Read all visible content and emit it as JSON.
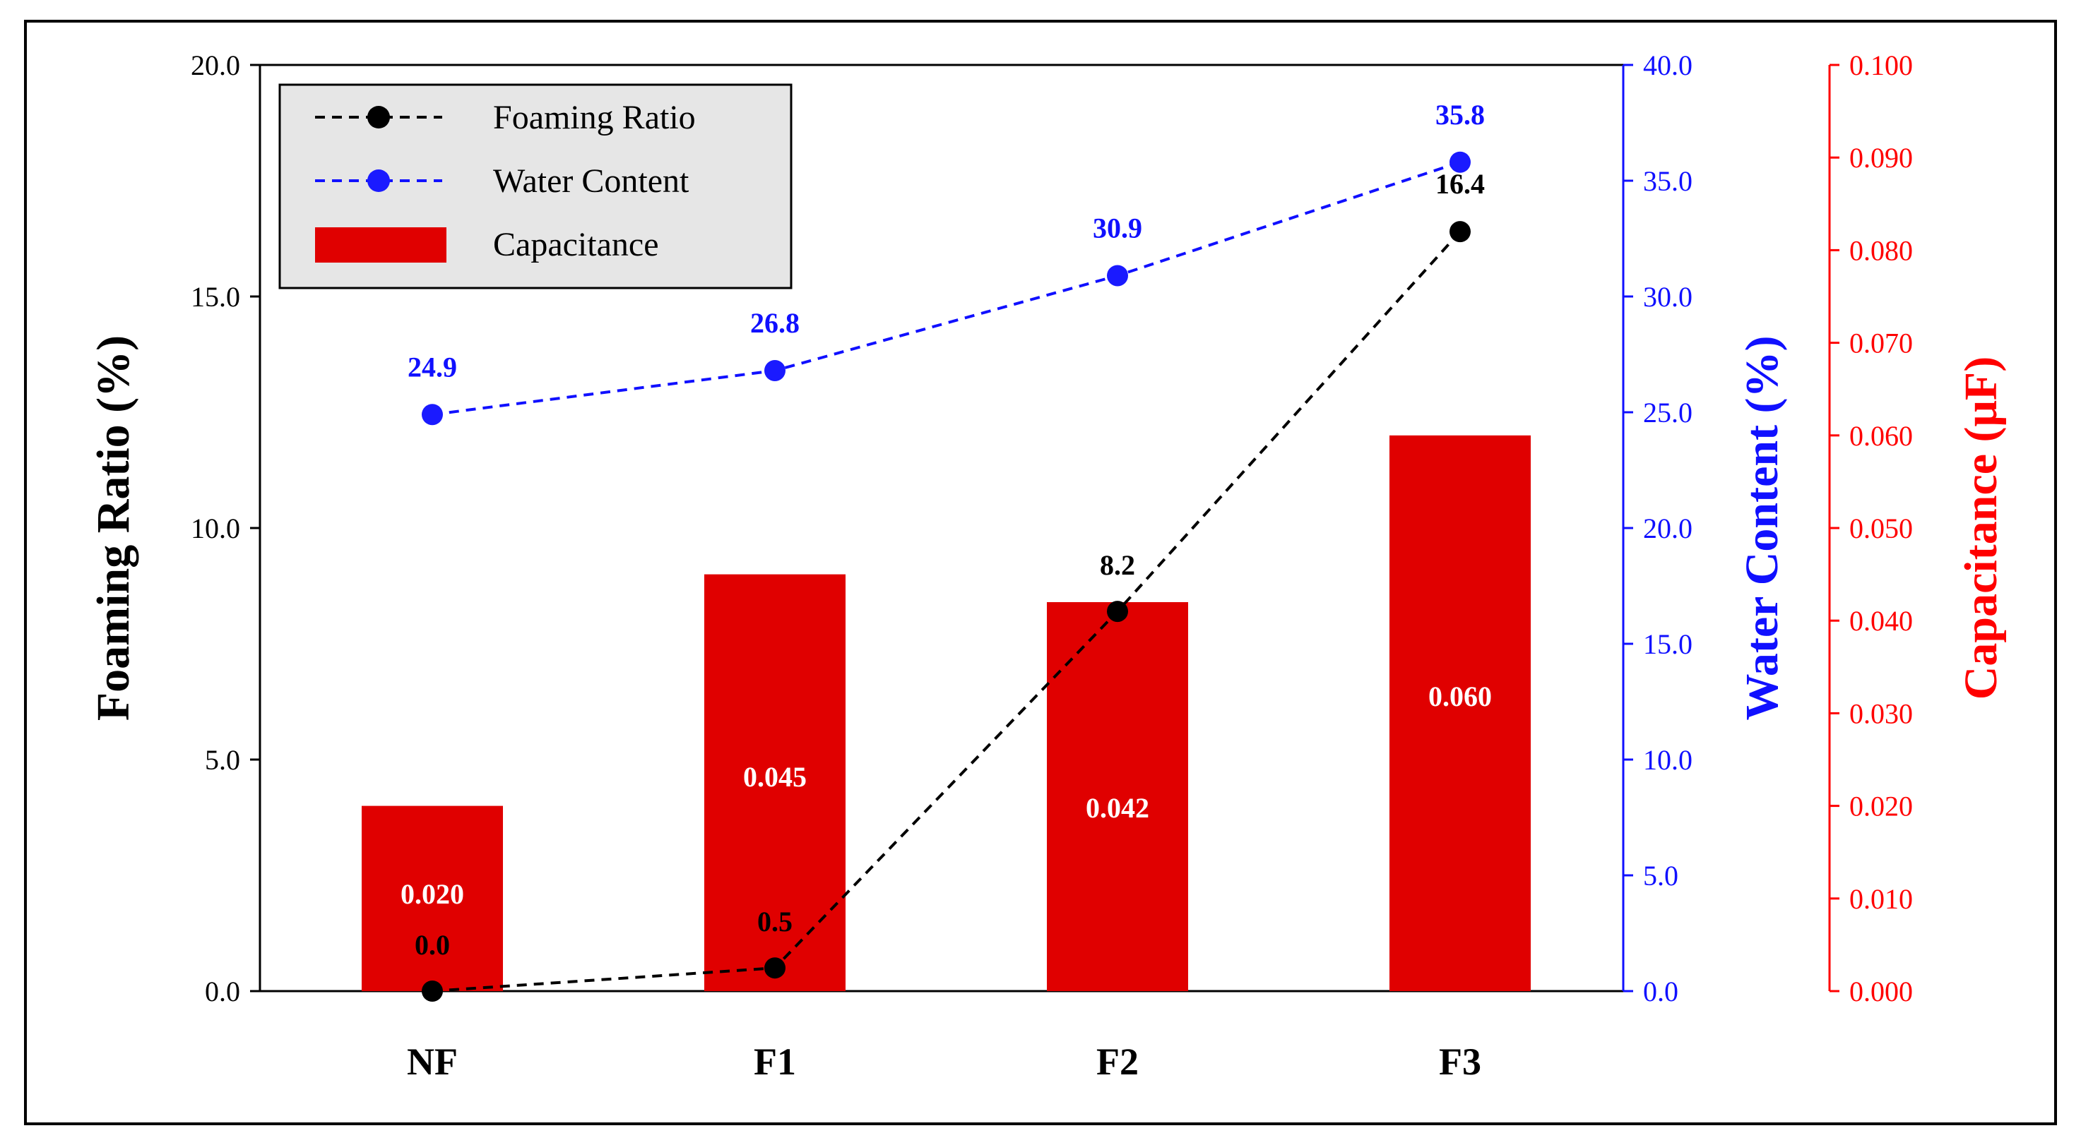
{
  "chart_data": {
    "type": "bar",
    "categories": [
      "NF",
      "F1",
      "F2",
      "F3"
    ],
    "series": [
      {
        "name": "Foaming Ratio",
        "kind": "line",
        "axis": "left",
        "values": [
          0.0,
          0.5,
          8.2,
          16.4
        ],
        "labels": [
          "0.0",
          "0.5",
          "8.2",
          "16.4"
        ],
        "color": "#000000",
        "marker_color": "#000000"
      },
      {
        "name": "Water Content",
        "kind": "line",
        "axis": "right1",
        "values": [
          24.9,
          26.8,
          30.9,
          35.8
        ],
        "labels": [
          "24.9",
          "26.8",
          "30.9",
          "35.8"
        ],
        "color": "#1010ff",
        "marker_color": "#1a1aff"
      },
      {
        "name": "Capacitance",
        "kind": "bar",
        "axis": "right2",
        "values": [
          0.02,
          0.045,
          0.042,
          0.06
        ],
        "labels": [
          "0.020",
          "0.045",
          "0.042",
          "0.060"
        ],
        "color": "#e00000"
      }
    ],
    "axes": {
      "left": {
        "title": "Foaming Ratio (%)",
        "ylim": [
          0,
          20
        ],
        "ticks": [
          "0.0",
          "5.0",
          "10.0",
          "15.0",
          "20.0"
        ],
        "color": "#000000"
      },
      "right1": {
        "title": "Water Content (%)",
        "ylim": [
          0,
          40
        ],
        "ticks": [
          "0.0",
          "5.0",
          "10.0",
          "15.0",
          "20.0",
          "25.0",
          "30.0",
          "35.0",
          "40.0"
        ],
        "color": "#1010ff"
      },
      "right2": {
        "title": "Capacitance (μF)",
        "ylim": [
          0,
          0.1
        ],
        "ticks": [
          "0.000",
          "0.010",
          "0.020",
          "0.030",
          "0.040",
          "0.050",
          "0.060",
          "0.070",
          "0.080",
          "0.090",
          "0.100"
        ],
        "color": "#ff0000"
      }
    },
    "legend": {
      "placement": "top-left",
      "entries": [
        "Foaming Ratio",
        "Water Content",
        "Capacitance"
      ]
    },
    "grid": false
  }
}
